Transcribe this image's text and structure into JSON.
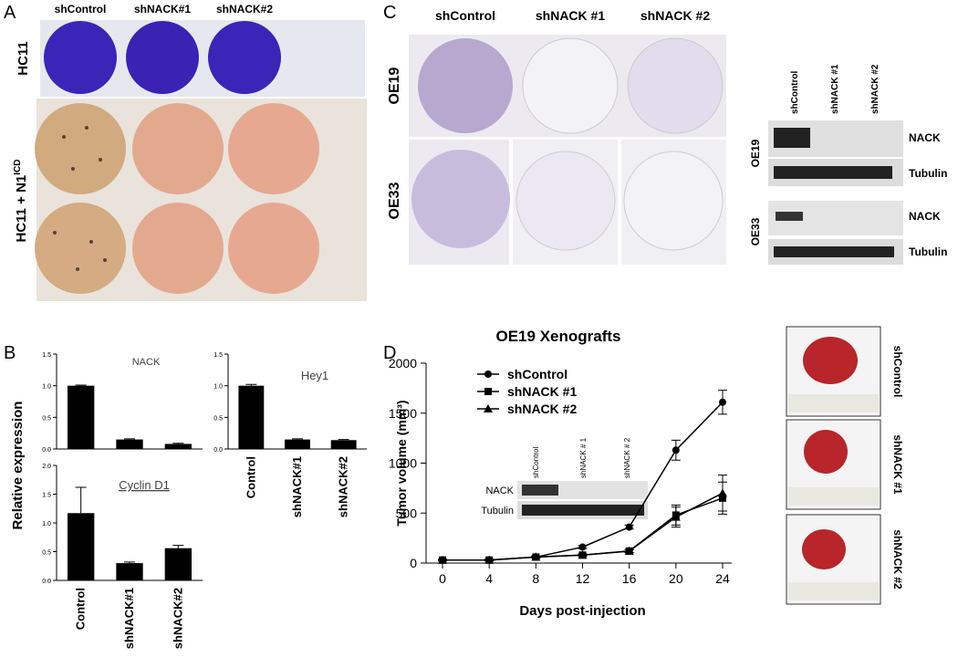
{
  "panel_a": {
    "label": "A",
    "columns": [
      "shControl",
      "shNACK#1",
      "shNACK#2"
    ],
    "row_labels": [
      "HC11",
      "HC11 + N1"
    ],
    "row_label_superscript": "ICD"
  },
  "panel_b": {
    "label": "B",
    "ylabel": "Relative expression"
  },
  "panel_c": {
    "label": "C",
    "columns": [
      "shControl",
      "shNACK #1",
      "shNACK #2"
    ],
    "row_labels": [
      "OE19",
      "OE33"
    ],
    "blot": {
      "lanes": [
        "shControl",
        "shNACK #1",
        "shNACK #2"
      ],
      "cell_lines": [
        "OE19",
        "OE33"
      ],
      "bands": [
        "NACK",
        "Tubulin",
        "NACK",
        "Tubulin"
      ]
    }
  },
  "panel_d": {
    "label": "D",
    "inset_blot": {
      "lanes": [
        "shControl",
        "shNACK # 1",
        "shNACK # 2"
      ],
      "bands": [
        "NACK",
        "Tubulin"
      ]
    },
    "photo_labels": [
      "shControl",
      "shNACK #1",
      "shNACK #2"
    ]
  },
  "chart_data": [
    {
      "type": "bar",
      "title": "NACK",
      "categories": [
        null,
        null,
        null
      ],
      "values": [
        1.0,
        0.15,
        0.08
      ],
      "errors": [
        0.01,
        0.01,
        0.01
      ],
      "color": "#000000",
      "ylim": [
        0,
        1.5
      ],
      "yticks": [
        {
          "value": 0,
          "label": "0.0"
        },
        {
          "value": 0.5,
          "label": "0.5"
        },
        {
          "value": 1,
          "label": "1.0"
        },
        {
          "value": 1.5,
          "label": "1.5"
        }
      ]
    },
    {
      "type": "bar",
      "title": "Hey1",
      "categories": [
        "Control",
        "shNACK#1",
        "shNACK#2"
      ],
      "values": [
        1.0,
        0.15,
        0.14
      ],
      "errors": [
        0.02,
        0.01,
        0.01
      ],
      "color": "#000000",
      "ylim": [
        0,
        1.5
      ],
      "yticks": [
        {
          "value": 0,
          "label": "0.0"
        },
        {
          "value": 0.5,
          "label": "0.5"
        },
        {
          "value": 1,
          "label": "1.0"
        },
        {
          "value": 1.5,
          "label": "1.5"
        }
      ]
    },
    {
      "type": "bar",
      "title": "Cyclin D1",
      "categories": [
        "Control",
        "shNACK#1",
        "shNACK#2"
      ],
      "values": [
        1.17,
        0.3,
        0.56
      ],
      "errors": [
        0.45,
        0.02,
        0.05
      ],
      "color": "#000000",
      "ylim": [
        0,
        2
      ],
      "yticks": [
        {
          "value": 0,
          "label": "0.0"
        },
        {
          "value": 0.5,
          "label": "0.5"
        },
        {
          "value": 1,
          "label": "1.0"
        },
        {
          "value": 1.5,
          "label": "1.5"
        },
        {
          "value": 2,
          "label": "2.0"
        }
      ]
    },
    {
      "type": "line",
      "title": "OE19 Xenografts",
      "xlabel": "Days post-injection",
      "ylabel": "Tumor volume (mm³)",
      "x": [
        0,
        4,
        8,
        12,
        16,
        20,
        24
      ],
      "xlim": [
        0,
        24
      ],
      "xticks": [
        0,
        4,
        8,
        12,
        16,
        20,
        24
      ],
      "ylim": [
        0,
        2000
      ],
      "yticks": [
        0,
        500,
        1000,
        1500,
        2000
      ],
      "series": [
        {
          "name": "shControl",
          "color": "#000000",
          "marker": "circle",
          "values": [
            30,
            30,
            60,
            160,
            360,
            1130,
            1610
          ],
          "errors": [
            10,
            10,
            10,
            15,
            20,
            100,
            120
          ]
        },
        {
          "name": "shNACK #1",
          "color": "#000000",
          "marker": "square",
          "values": [
            30,
            30,
            60,
            80,
            120,
            480,
            650
          ],
          "errors": [
            5,
            5,
            10,
            10,
            15,
            100,
            160
          ]
        },
        {
          "name": "shNACK #2",
          "color": "#000000",
          "marker": "triangle",
          "values": [
            30,
            30,
            60,
            80,
            120,
            460,
            700
          ],
          "errors": [
            5,
            5,
            10,
            10,
            15,
            100,
            180
          ]
        }
      ]
    }
  ]
}
